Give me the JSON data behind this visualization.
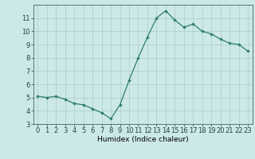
{
  "x": [
    0,
    1,
    2,
    3,
    4,
    5,
    6,
    7,
    8,
    9,
    10,
    11,
    12,
    13,
    14,
    15,
    16,
    17,
    18,
    19,
    20,
    21,
    22,
    23
  ],
  "y": [
    5.1,
    5.0,
    5.1,
    4.85,
    4.55,
    4.45,
    4.15,
    3.85,
    3.4,
    4.45,
    6.3,
    8.0,
    9.55,
    11.0,
    11.55,
    10.85,
    10.3,
    10.55,
    10.0,
    9.8,
    9.4,
    9.1,
    9.0,
    8.5
  ],
  "line_color": "#2e7d6e",
  "marker": "D",
  "marker_size": 1.8,
  "bg_color": "#cce8e8",
  "grid_color": "#aacccc",
  "xlabel": "Humidex (Indice chaleur)",
  "ylim": [
    3,
    12
  ],
  "xlim": [
    -0.5,
    23.5
  ],
  "yticks": [
    3,
    4,
    5,
    6,
    7,
    8,
    9,
    10,
    11
  ],
  "xticks": [
    0,
    1,
    2,
    3,
    4,
    5,
    6,
    7,
    8,
    9,
    10,
    11,
    12,
    13,
    14,
    15,
    16,
    17,
    18,
    19,
    20,
    21,
    22,
    23
  ],
  "label_fontsize": 6.5,
  "tick_fontsize": 6.0
}
